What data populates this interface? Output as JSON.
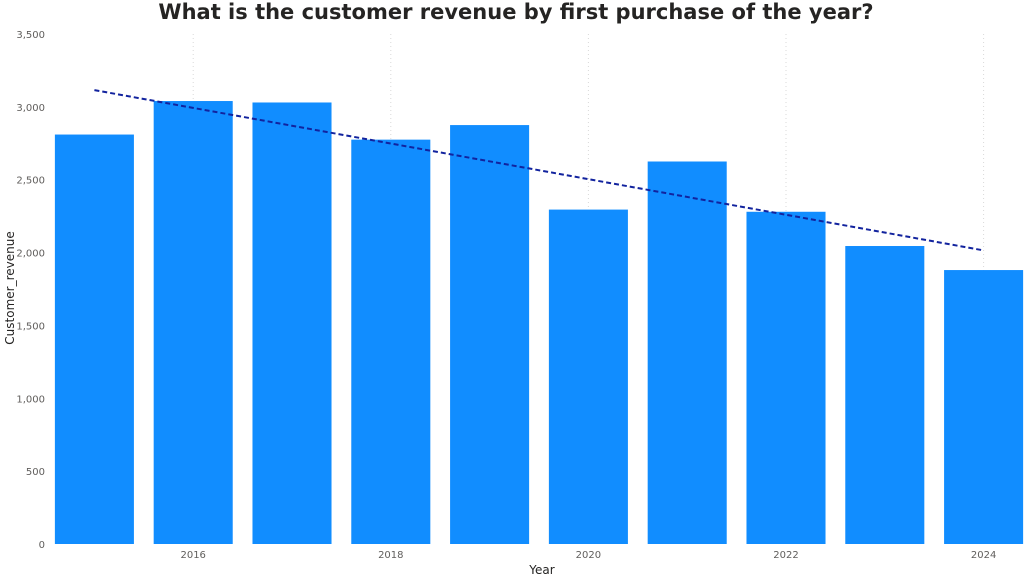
{
  "chart_data": {
    "type": "bar",
    "title": "What is the customer revenue by first purchase of the year?",
    "xlabel": "Year",
    "ylabel": "Customer_revenue",
    "categories": [
      2015,
      2016,
      2017,
      2018,
      2019,
      2020,
      2021,
      2022,
      2023,
      2024
    ],
    "x_tick_labels": [
      "2016",
      "2018",
      "2020",
      "2022",
      "2024"
    ],
    "y_tick_labels": [
      "0",
      "500",
      "1,000",
      "1,500",
      "2,000",
      "2,500",
      "3,000",
      "3,500"
    ],
    "y_ticks": [
      0,
      500,
      1000,
      1500,
      2000,
      2500,
      3000,
      3500
    ],
    "ylim": [
      0,
      3500
    ],
    "values": [
      2810,
      3040,
      3030,
      2775,
      2875,
      2295,
      2625,
      2280,
      2045,
      1880
    ],
    "trendline": {
      "style": "dashed",
      "start": 3115,
      "end": 2015
    },
    "grid": "vertical dotted",
    "colors": {
      "bar": "#118DFF",
      "trendline": "#12239E",
      "grid": "#d9d9d9"
    }
  }
}
